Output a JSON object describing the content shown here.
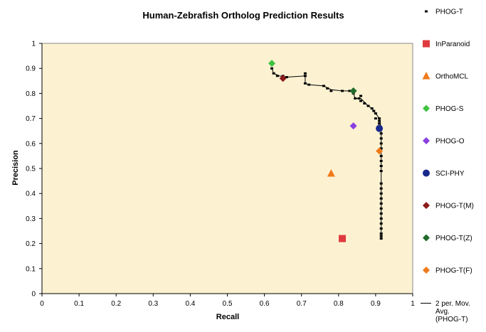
{
  "chart_data": {
    "type": "scatter",
    "title": "Human-Zebrafish Ortholog Prediction Results",
    "xlabel": "Recall",
    "ylabel": "Precision",
    "xlim": [
      0,
      1
    ],
    "ylim": [
      0,
      1
    ],
    "x_ticks": [
      "0",
      "0.1",
      "0.2",
      "0.3",
      "0.4",
      "0.5",
      "0.6",
      "0.7",
      "0.8",
      "0.9",
      "1"
    ],
    "y_ticks": [
      "0",
      "0.1",
      "0.2",
      "0.3",
      "0.4",
      "0.5",
      "0.6",
      "0.7",
      "0.8",
      "0.9",
      "1"
    ],
    "grid": false,
    "plot_background": "#FCF2D2",
    "legend_position": "right",
    "series": [
      {
        "name": "PHOG-T",
        "marker": "small-square",
        "color": "#000000",
        "points": [
          [
            0.62,
            0.92
          ],
          [
            0.62,
            0.9
          ],
          [
            0.625,
            0.88
          ],
          [
            0.635,
            0.87
          ],
          [
            0.65,
            0.87
          ],
          [
            0.66,
            0.865
          ],
          [
            0.71,
            0.87
          ],
          [
            0.71,
            0.88
          ],
          [
            0.71,
            0.84
          ],
          [
            0.72,
            0.835
          ],
          [
            0.76,
            0.83
          ],
          [
            0.77,
            0.82
          ],
          [
            0.78,
            0.81
          ],
          [
            0.81,
            0.81
          ],
          [
            0.83,
            0.81
          ],
          [
            0.84,
            0.8
          ],
          [
            0.845,
            0.78
          ],
          [
            0.855,
            0.78
          ],
          [
            0.86,
            0.79
          ],
          [
            0.86,
            0.77
          ],
          [
            0.87,
            0.76
          ],
          [
            0.88,
            0.75
          ],
          [
            0.89,
            0.74
          ],
          [
            0.895,
            0.73
          ],
          [
            0.9,
            0.72
          ],
          [
            0.9,
            0.7
          ],
          [
            0.91,
            0.7
          ],
          [
            0.91,
            0.69
          ],
          [
            0.91,
            0.68
          ],
          [
            0.91,
            0.67
          ],
          [
            0.915,
            0.66
          ],
          [
            0.915,
            0.64
          ],
          [
            0.915,
            0.62
          ],
          [
            0.915,
            0.6
          ],
          [
            0.915,
            0.58
          ],
          [
            0.915,
            0.55
          ],
          [
            0.915,
            0.53
          ],
          [
            0.915,
            0.51
          ],
          [
            0.915,
            0.49
          ],
          [
            0.915,
            0.44
          ],
          [
            0.915,
            0.42
          ],
          [
            0.915,
            0.4
          ],
          [
            0.915,
            0.38
          ],
          [
            0.915,
            0.36
          ],
          [
            0.915,
            0.34
          ],
          [
            0.915,
            0.32
          ],
          [
            0.915,
            0.3
          ],
          [
            0.915,
            0.28
          ],
          [
            0.915,
            0.26
          ],
          [
            0.915,
            0.24
          ],
          [
            0.915,
            0.23
          ],
          [
            0.915,
            0.22
          ]
        ]
      },
      {
        "name": "InParanoid",
        "marker": "square",
        "color": "#E03A3E",
        "points": [
          [
            0.81,
            0.22
          ]
        ]
      },
      {
        "name": "OrthoMCL",
        "marker": "triangle",
        "color": "#F07A1A",
        "points": [
          [
            0.78,
            0.48
          ]
        ]
      },
      {
        "name": "PHOG-S",
        "marker": "diamond",
        "color": "#3FC23F",
        "points": [
          [
            0.62,
            0.92
          ]
        ]
      },
      {
        "name": "PHOG-O",
        "marker": "diamond",
        "color": "#8A3FE0",
        "points": [
          [
            0.84,
            0.67
          ]
        ]
      },
      {
        "name": "SCI-PHY",
        "marker": "circle",
        "color": "#1A2A8C",
        "points": [
          [
            0.91,
            0.66
          ]
        ]
      },
      {
        "name": "PHOG-T(M)",
        "marker": "diamond",
        "color": "#8B1A1A",
        "points": [
          [
            0.65,
            0.86
          ]
        ]
      },
      {
        "name": "PHOG-T(Z)",
        "marker": "diamond",
        "color": "#1F6B2A",
        "points": [
          [
            0.84,
            0.81
          ]
        ]
      },
      {
        "name": "PHOG-T(F)",
        "marker": "diamond",
        "color": "#F07A1A",
        "points": [
          [
            0.91,
            0.57
          ]
        ]
      }
    ],
    "moving_average": {
      "name_lines": [
        "2 per. Mov.",
        "Avg.",
        "(PHOG-T)"
      ],
      "color": "#000000",
      "points": [
        [
          0.62,
          0.9
        ],
        [
          0.625,
          0.88
        ],
        [
          0.64,
          0.87
        ],
        [
          0.66,
          0.865
        ],
        [
          0.71,
          0.87
        ],
        [
          0.71,
          0.84
        ],
        [
          0.72,
          0.835
        ],
        [
          0.76,
          0.83
        ],
        [
          0.78,
          0.815
        ],
        [
          0.81,
          0.81
        ],
        [
          0.83,
          0.81
        ],
        [
          0.84,
          0.8
        ],
        [
          0.845,
          0.78
        ],
        [
          0.86,
          0.78
        ],
        [
          0.87,
          0.765
        ],
        [
          0.88,
          0.75
        ],
        [
          0.89,
          0.74
        ],
        [
          0.9,
          0.72
        ],
        [
          0.91,
          0.7
        ],
        [
          0.915,
          0.66
        ],
        [
          0.915,
          0.22
        ]
      ]
    }
  }
}
